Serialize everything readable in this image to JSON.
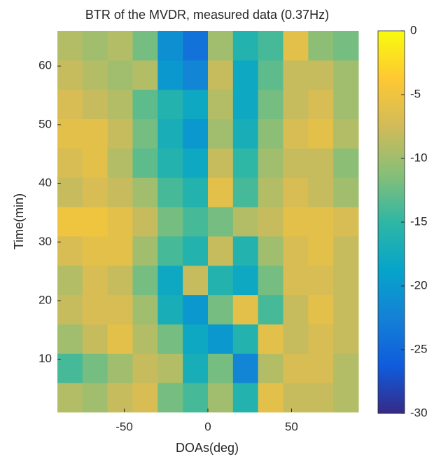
{
  "chart_data": {
    "type": "heatmap",
    "title": "BTR of the MVDR, measured data (0.37Hz)",
    "xlabel": "DOAs(deg)",
    "ylabel": "Time(min)",
    "xbins": [
      -90,
      -75,
      -60,
      -45,
      -30,
      -15,
      0,
      15,
      30,
      45,
      60,
      75,
      90
    ],
    "ybins": [
      1,
      6,
      11,
      16,
      21,
      26,
      31,
      36,
      41,
      46,
      51,
      56,
      61,
      66
    ],
    "z": [
      [
        -9,
        -10,
        -8,
        -7,
        -12,
        -14,
        -10,
        -16,
        -6,
        -8,
        -8,
        -9
      ],
      [
        -14,
        -12,
        -10,
        -8,
        -9,
        -17,
        -12,
        -22,
        -9,
        -7,
        -7,
        -9
      ],
      [
        -10,
        -8,
        -6,
        -9,
        -12,
        -18,
        -20,
        -16,
        -6,
        -8,
        -7,
        -8
      ],
      [
        -8,
        -7,
        -7,
        -10,
        -17,
        -20,
        -12,
        -6,
        -14,
        -8,
        -6,
        -8
      ],
      [
        -9,
        -7,
        -8,
        -12,
        -18,
        -8,
        -16,
        -18,
        -12,
        -7,
        -7,
        -8
      ],
      [
        -7,
        -6,
        -6,
        -10,
        -14,
        -16,
        -8,
        -16,
        -10,
        -7,
        -6,
        -8
      ],
      [
        -5,
        -5,
        -6,
        -8,
        -12,
        -14,
        -12,
        -9,
        -8,
        -6,
        -6,
        -7
      ],
      [
        -8,
        -7,
        -8,
        -10,
        -14,
        -16,
        -6,
        -14,
        -9,
        -7,
        -8,
        -10
      ],
      [
        -7,
        -6,
        -9,
        -13,
        -16,
        -18,
        -8,
        -15,
        -10,
        -8,
        -8,
        -11
      ],
      [
        -6,
        -6,
        -8,
        -12,
        -17,
        -20,
        -10,
        -17,
        -11,
        -7,
        -6,
        -9
      ],
      [
        -7,
        -8,
        -9,
        -13,
        -16,
        -18,
        -9,
        -18,
        -12,
        -8,
        -7,
        -10
      ],
      [
        -8,
        -9,
        -10,
        -9,
        -20,
        -22,
        -8,
        -18,
        -13,
        -8,
        -8,
        -10
      ],
      [
        -9,
        -10,
        -9,
        -12,
        -21,
        -24,
        -10,
        -16,
        -14,
        -6,
        -11,
        -12
      ]
    ],
    "xlim": [
      -90,
      90
    ],
    "xticks": [
      -50,
      0,
      50
    ],
    "ylim": [
      1,
      66
    ],
    "yticks": [
      10,
      20,
      30,
      40,
      50,
      60
    ],
    "clim": [
      -30,
      0
    ],
    "cticks": [
      -30,
      -25,
      -20,
      -15,
      -10,
      -5,
      0
    ],
    "colormap": [
      "#352a87",
      "#0f5cdd",
      "#1481d6",
      "#06a4ca",
      "#2eb7a4",
      "#87bf77",
      "#d1bb59",
      "#fec832",
      "#f9fb0e"
    ]
  }
}
